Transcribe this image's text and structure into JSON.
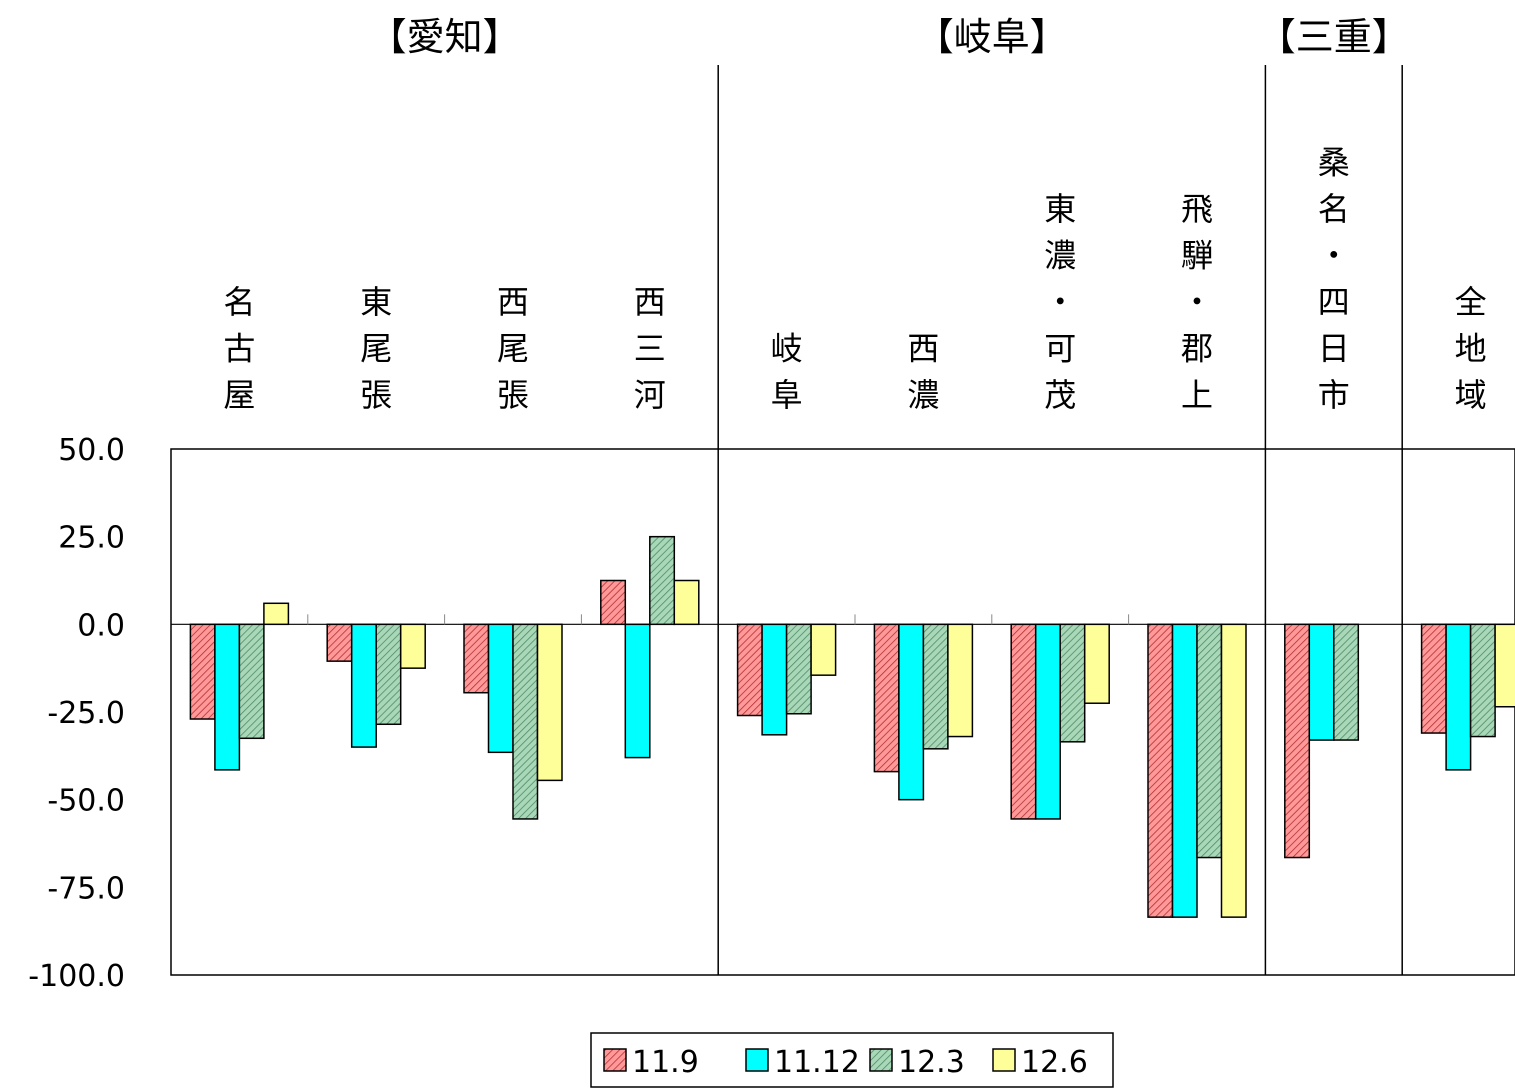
{
  "chart_data": {
    "type": "bar",
    "title": "",
    "xlabel": "",
    "ylabel": "",
    "ylim": [
      -100,
      50
    ],
    "yticks": [
      "50.0",
      "25.0",
      "0.0",
      "-25.0",
      "-50.0",
      "-75.0",
      "-100.0"
    ],
    "grid": false,
    "legend_position": "bottom",
    "groups": [
      {
        "label": "【愛知】",
        "categories": [
          0,
          1,
          2,
          3
        ]
      },
      {
        "label": "【岐阜】",
        "categories": [
          4,
          5,
          6,
          7
        ]
      },
      {
        "label": "【三重】",
        "categories": [
          8
        ]
      }
    ],
    "categories": [
      {
        "name": "名古屋",
        "lines": [
          "名",
          "古",
          "屋"
        ]
      },
      {
        "name": "東尾張",
        "lines": [
          "東",
          "尾",
          "張"
        ]
      },
      {
        "name": "西尾張",
        "lines": [
          "西",
          "尾",
          "張"
        ]
      },
      {
        "name": "西三河",
        "lines": [
          "西",
          "三",
          "河"
        ]
      },
      {
        "name": "岐阜",
        "lines": [
          "岐",
          "阜"
        ]
      },
      {
        "name": "西濃",
        "lines": [
          "西",
          "濃"
        ]
      },
      {
        "name": "東濃・可茂",
        "lines": [
          "東",
          "濃",
          "・",
          "可",
          "茂"
        ]
      },
      {
        "name": "飛騨・郡上",
        "lines": [
          "飛",
          "騨",
          "・",
          "郡",
          "上"
        ]
      },
      {
        "name": "桑名・四日市",
        "lines": [
          "桑",
          "名",
          "・",
          "四",
          "日",
          "市"
        ]
      },
      {
        "name": "全地域",
        "lines": [
          "全",
          "地",
          "域"
        ]
      }
    ],
    "series": [
      {
        "name": "11.9",
        "color": "#ff9999",
        "pattern": "hatch",
        "values": [
          -27,
          -10.5,
          -19.5,
          12.5,
          -26,
          -42,
          -55.5,
          -83.5,
          -66.5,
          -31
        ]
      },
      {
        "name": "11.12",
        "color": "#00ffff",
        "pattern": "solid",
        "values": [
          -41.5,
          -35,
          -36.5,
          -38,
          -31.5,
          -50,
          -55.5,
          -83.5,
          -33,
          -41.5
        ]
      },
      {
        "name": "12.3",
        "color": "#99ccaa",
        "pattern": "hatch",
        "values": [
          -32.5,
          -28.5,
          -55.5,
          25,
          -25.5,
          -35.5,
          -33.5,
          -66.5,
          -33,
          -32
        ]
      },
      {
        "name": "12.6",
        "color": "#ffff99",
        "pattern": "solid",
        "values": [
          6,
          -12.5,
          -44.5,
          12.5,
          -14.5,
          -32,
          -22.5,
          -83.5,
          null,
          -23.5
        ]
      }
    ]
  }
}
